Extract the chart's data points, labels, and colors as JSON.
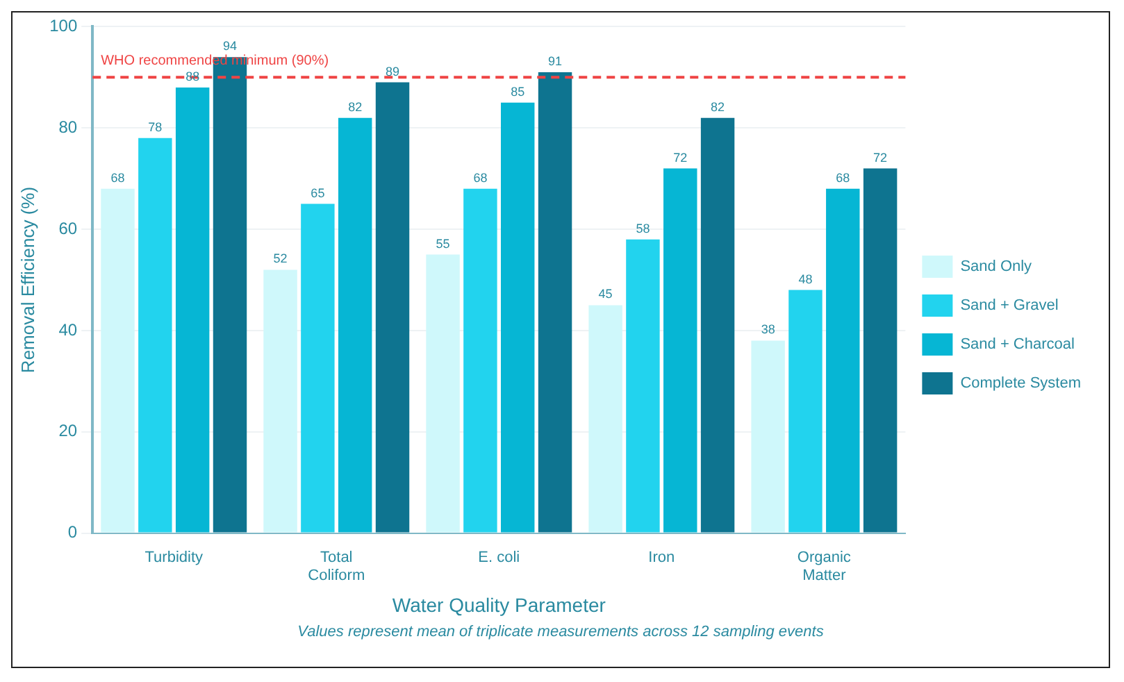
{
  "chart_data": {
    "type": "bar",
    "xlabel": "Water Quality Parameter",
    "ylabel": "Removal Efficiency (%)",
    "categories": [
      "Turbidity",
      "Total\nColiform",
      "E. coli",
      "Iron",
      "Organic\nMatter"
    ],
    "series": [
      {
        "name": "Sand Only",
        "color": "#cff8fb",
        "values": [
          68,
          52,
          55,
          45,
          38
        ]
      },
      {
        "name": "Sand + Gravel",
        "color": "#22d3ee",
        "values": [
          78,
          65,
          68,
          58,
          48
        ]
      },
      {
        "name": "Sand + Charcoal",
        "color": "#06b6d4",
        "values": [
          88,
          82,
          85,
          72,
          68
        ]
      },
      {
        "name": "Complete System",
        "color": "#0e7490",
        "values": [
          94,
          89,
          91,
          82,
          72
        ]
      }
    ],
    "ylim": [
      0,
      100
    ],
    "yticks": [
      0,
      20,
      40,
      60,
      80,
      100
    ],
    "grid": "y",
    "legend": "right",
    "data_labels": true,
    "ref_lines": [
      {
        "axis": "y",
        "value": 90,
        "label": "WHO recommended minimum (90%)",
        "color": "#ef4444",
        "line_style": "dashed"
      }
    ],
    "annotations": [
      "Values represent mean of triplicate measurements across 12 sampling events"
    ]
  }
}
